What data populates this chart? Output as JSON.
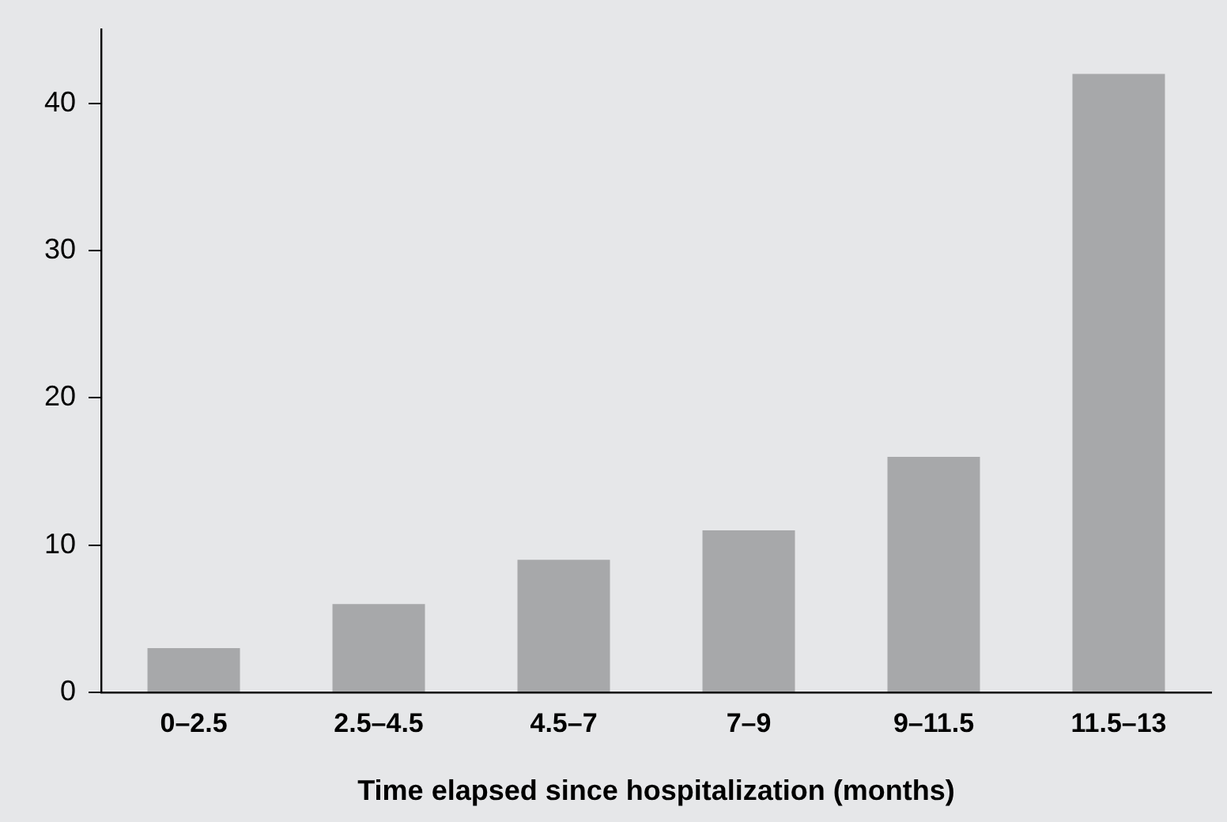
{
  "chart_data": {
    "type": "bar",
    "xlabel": "Time elapsed since hospitalization (months)",
    "categories": [
      "0–2.5",
      "2.5–4.5",
      "4.5–7",
      "7–9",
      "9–11.5",
      "11.5–13"
    ],
    "values": [
      3,
      6,
      9,
      11,
      16,
      42
    ],
    "color": "#a7a8aa",
    "ylim": [
      0,
      45
    ],
    "yticks": [
      0,
      10,
      20,
      30,
      40
    ],
    "grid": false,
    "legend": false
  }
}
